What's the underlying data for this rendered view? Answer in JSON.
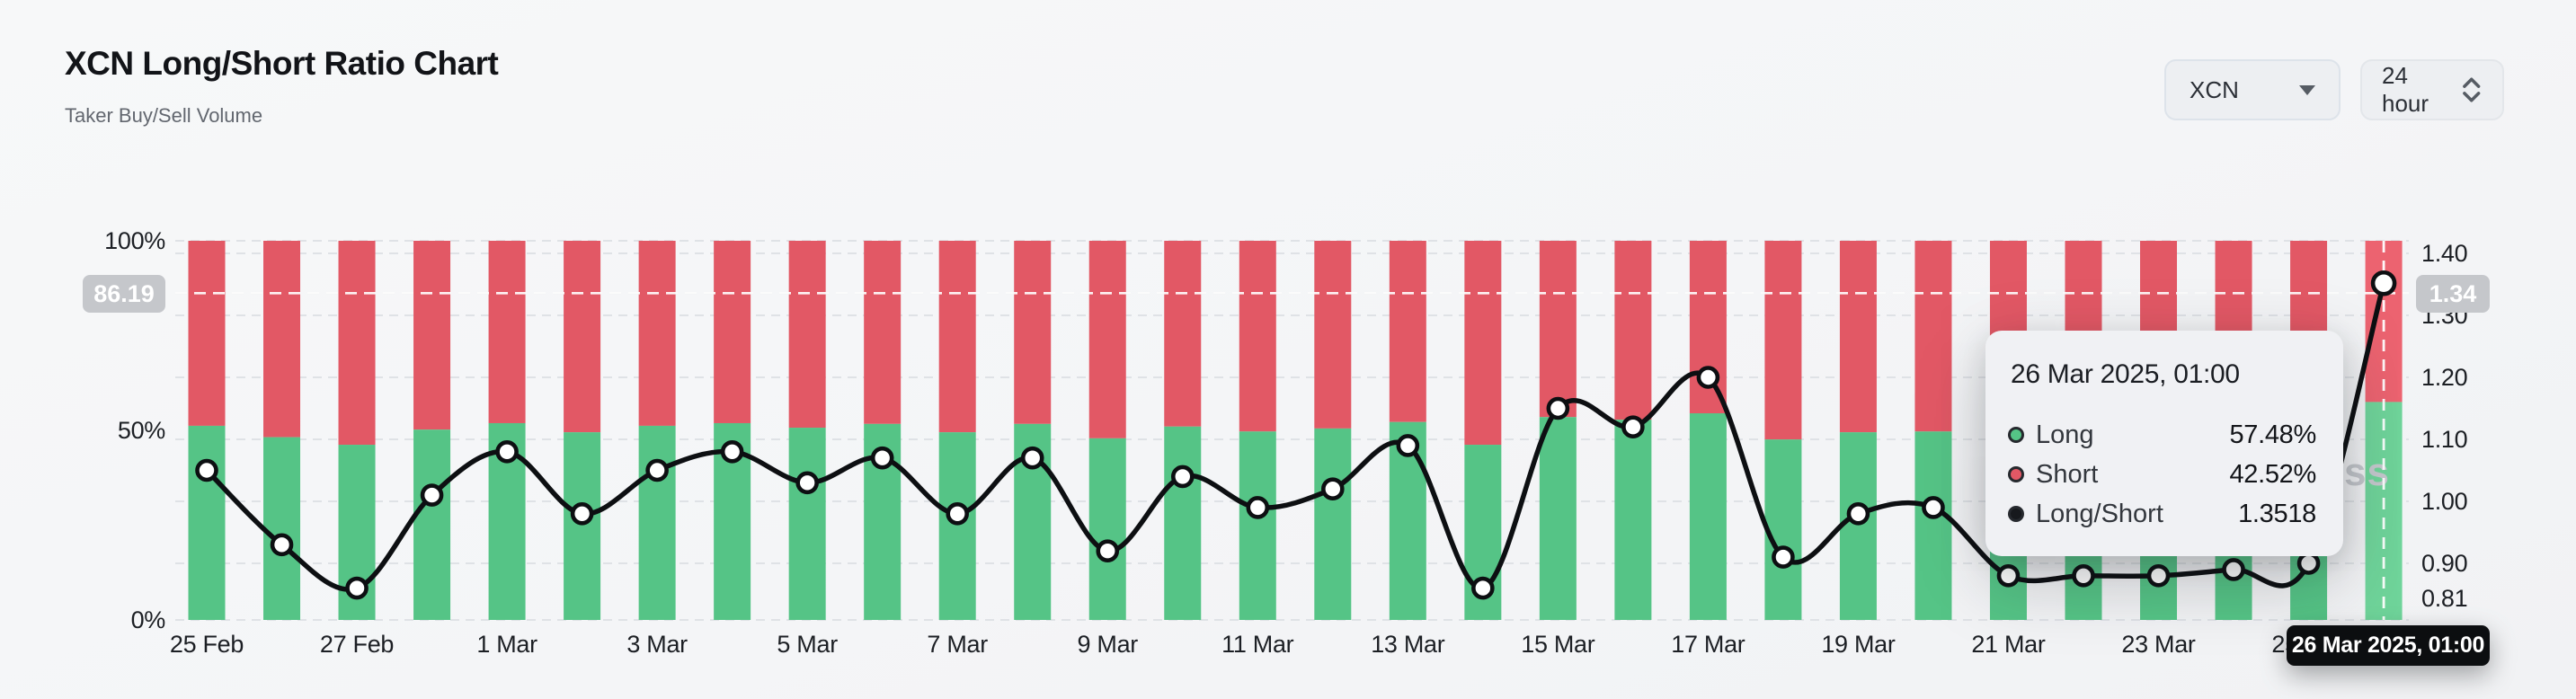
{
  "header": {
    "title": "XCN Long/Short Ratio Chart",
    "subtitle": "Taker Buy/Sell Volume"
  },
  "controls": {
    "symbol_label": "XCN",
    "interval_label": "24 hour"
  },
  "crosshair": {
    "percent": 86.19,
    "percent_label": "86.19",
    "ratio": 1.34,
    "ratio_label": "1.34",
    "date": "26 Mar 2025, 01:00",
    "hover_index": 29
  },
  "tooltip": {
    "title": "26 Mar 2025, 01:00",
    "rows": [
      {
        "label": "Long",
        "value": "57.48%",
        "color": "#55c486"
      },
      {
        "label": "Short",
        "value": "42.52%",
        "color": "#e25865"
      },
      {
        "label": "Long/Short",
        "value": "1.3518",
        "color": "#17191d"
      }
    ]
  },
  "watermark": {
    "visible_text": "ss"
  },
  "chart_data": {
    "type": "bar",
    "subtype": "stacked-percent bars with ratio line overlay",
    "categories": [
      "25 Feb",
      "26 Feb",
      "27 Feb",
      "28 Feb",
      "1 Mar",
      "2 Mar",
      "3 Mar",
      "4 Mar",
      "5 Mar",
      "6 Mar",
      "7 Mar",
      "8 Mar",
      "9 Mar",
      "10 Mar",
      "11 Mar",
      "12 Mar",
      "13 Mar",
      "14 Mar",
      "15 Mar",
      "16 Mar",
      "17 Mar",
      "18 Mar",
      "19 Mar",
      "20 Mar",
      "21 Mar",
      "22 Mar",
      "23 Mar",
      "24 Mar",
      "25 Mar",
      "26 Mar"
    ],
    "series": [
      {
        "name": "Long",
        "type": "bar",
        "unit": "%",
        "color": "#55c486",
        "values": [
          51.2,
          48.2,
          46.2,
          50.2,
          51.9,
          49.5,
          51.2,
          51.9,
          50.7,
          51.7,
          49.5,
          51.7,
          47.9,
          51.0,
          49.7,
          50.5,
          52.2,
          46.2,
          53.5,
          52.8,
          54.5,
          47.6,
          49.5,
          49.7,
          46.8,
          46.8,
          46.8,
          47.1,
          47.4,
          57.48
        ]
      },
      {
        "name": "Short",
        "type": "bar",
        "unit": "%",
        "color": "#e25865",
        "values": [
          48.8,
          51.8,
          53.8,
          49.8,
          48.1,
          50.5,
          48.8,
          48.1,
          49.3,
          48.3,
          50.5,
          48.3,
          52.1,
          49.0,
          50.3,
          49.5,
          47.8,
          53.8,
          46.5,
          47.2,
          45.5,
          52.4,
          50.5,
          50.3,
          53.2,
          53.2,
          53.2,
          52.9,
          52.6,
          42.52
        ]
      },
      {
        "name": "Long/Short",
        "type": "line",
        "color": "#0d0f12",
        "values": [
          1.05,
          0.93,
          0.86,
          1.01,
          1.08,
          0.98,
          1.05,
          1.08,
          1.03,
          1.07,
          0.98,
          1.07,
          0.92,
          1.04,
          0.99,
          1.02,
          1.09,
          0.86,
          1.15,
          1.12,
          1.2,
          0.91,
          0.98,
          0.99,
          0.88,
          0.88,
          0.88,
          0.89,
          0.9,
          1.3518
        ]
      }
    ],
    "highlight_colors": {
      "long": "#6fd49a",
      "short": "#ec6370"
    },
    "left_axis": {
      "range": [
        0,
        100
      ],
      "ticks": [
        {
          "label": "100%",
          "value": 100
        },
        {
          "label": "50%",
          "value": 50
        },
        {
          "label": "0%",
          "value": 0
        }
      ]
    },
    "right_axis": {
      "range": [
        0.81,
        1.4
      ],
      "ticks": [
        {
          "label": "1.40",
          "value": 1.4
        },
        {
          "label": "1.30",
          "value": 1.3
        },
        {
          "label": "1.20",
          "value": 1.2
        },
        {
          "label": "1.10",
          "value": 1.1
        },
        {
          "label": "1.00",
          "value": 1.0
        },
        {
          "label": "0.90",
          "value": 0.9
        },
        {
          "label": "0.81",
          "value": 0.81
        }
      ]
    },
    "x_ticks": [
      {
        "label": "25 Feb",
        "index": 0
      },
      {
        "label": "27 Feb",
        "index": 2
      },
      {
        "label": "1 Mar",
        "index": 4
      },
      {
        "label": "3 Mar",
        "index": 6
      },
      {
        "label": "5 Mar",
        "index": 8
      },
      {
        "label": "7 Mar",
        "index": 10
      },
      {
        "label": "9 Mar",
        "index": 12
      },
      {
        "label": "11 Mar",
        "index": 14
      },
      {
        "label": "13 Mar",
        "index": 16
      },
      {
        "label": "15 Mar",
        "index": 18
      },
      {
        "label": "17 Mar",
        "index": 20
      },
      {
        "label": "19 Mar",
        "index": 22
      },
      {
        "label": "21 Mar",
        "index": 24
      },
      {
        "label": "23 Mar",
        "index": 26
      },
      {
        "label": "25 Mar",
        "index": 28
      }
    ],
    "grid": "dashed horizontal at right-axis ticks",
    "legend_position": "none"
  }
}
